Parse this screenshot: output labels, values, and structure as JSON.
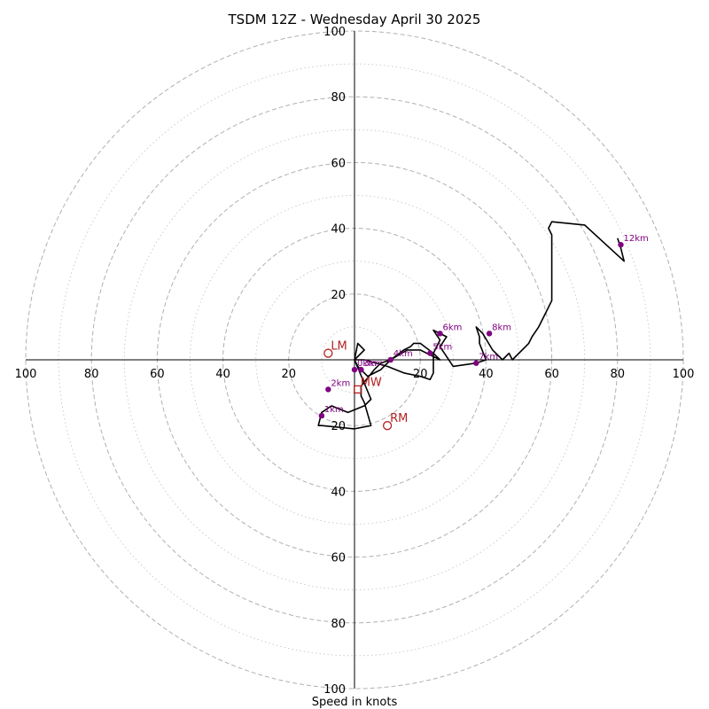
{
  "chart_data": {
    "type": "hodograph",
    "title": "TSDM 12Z - Wednesday April 30 2025",
    "xlabel": "Speed in knots",
    "ylabel": "",
    "xlim": [
      -100,
      100
    ],
    "ylim": [
      -100,
      100
    ],
    "x_ticks": [
      {
        "value": -100,
        "label": "100"
      },
      {
        "value": -80,
        "label": "80"
      },
      {
        "value": -60,
        "label": "60"
      },
      {
        "value": -40,
        "label": "40"
      },
      {
        "value": -20,
        "label": "20"
      },
      {
        "value": 20,
        "label": "20"
      },
      {
        "value": 40,
        "label": "40"
      },
      {
        "value": 60,
        "label": "60"
      },
      {
        "value": 80,
        "label": "80"
      },
      {
        "value": 100,
        "label": "100"
      }
    ],
    "y_ticks": [
      {
        "value": 100,
        "label": "100"
      },
      {
        "value": 80,
        "label": "80"
      },
      {
        "value": 60,
        "label": "60"
      },
      {
        "value": 40,
        "label": "40"
      },
      {
        "value": 20,
        "label": "20"
      },
      {
        "value": -20,
        "label": "20"
      },
      {
        "value": -40,
        "label": "40"
      },
      {
        "value": -60,
        "label": "60"
      },
      {
        "value": -80,
        "label": "80"
      },
      {
        "value": -100,
        "label": "100"
      }
    ],
    "rings_major": [
      20,
      40,
      60,
      80,
      100
    ],
    "rings_minor": [
      10,
      30,
      50,
      70,
      90
    ],
    "grid": true,
    "hodograph_trace": [
      [
        0,
        0
      ],
      [
        1,
        5
      ],
      [
        3,
        3
      ],
      [
        0,
        0
      ],
      [
        5,
        -12
      ],
      [
        3,
        -14
      ],
      [
        -2,
        -16
      ],
      [
        -7,
        -14
      ],
      [
        -10,
        -16
      ],
      [
        -11,
        -20
      ],
      [
        -10,
        -20
      ],
      [
        0,
        -21
      ],
      [
        5,
        -20
      ],
      [
        3,
        -13
      ],
      [
        2,
        -11
      ],
      [
        2,
        -8
      ],
      [
        6,
        -3
      ],
      [
        8,
        -1
      ],
      [
        11,
        0
      ],
      [
        15,
        3
      ],
      [
        17,
        4
      ],
      [
        18,
        5
      ],
      [
        19,
        5
      ],
      [
        20,
        5
      ],
      [
        24,
        2
      ],
      [
        26,
        0
      ],
      [
        24,
        1
      ],
      [
        20,
        3
      ],
      [
        16,
        3
      ],
      [
        11,
        0
      ],
      [
        8,
        -3
      ],
      [
        4,
        -5
      ],
      [
        1,
        -2
      ],
      [
        0,
        0
      ],
      [
        3,
        0
      ],
      [
        10,
        -2
      ],
      [
        15,
        -4
      ],
      [
        20,
        -5
      ],
      [
        23,
        -6
      ],
      [
        24,
        -4
      ],
      [
        24,
        2
      ],
      [
        26,
        6
      ],
      [
        24,
        9
      ],
      [
        28,
        7
      ],
      [
        26,
        4
      ],
      [
        30,
        -2
      ],
      [
        37,
        -1
      ],
      [
        40,
        0
      ],
      [
        38,
        5
      ],
      [
        38,
        7
      ],
      [
        37,
        10
      ],
      [
        39,
        8
      ],
      [
        42,
        3
      ],
      [
        45,
        0
      ],
      [
        47,
        2
      ],
      [
        48,
        0
      ],
      [
        52,
        4
      ],
      [
        53,
        5
      ],
      [
        54,
        7
      ],
      [
        56,
        10
      ],
      [
        58,
        14
      ],
      [
        60,
        18
      ],
      [
        60,
        22
      ],
      [
        60,
        38
      ],
      [
        59,
        40
      ],
      [
        60,
        42
      ],
      [
        70,
        41
      ],
      [
        82,
        30
      ],
      [
        81,
        34
      ],
      [
        80,
        37
      ]
    ],
    "height_markers": [
      {
        "label": "0km",
        "x": 0,
        "y": -3
      },
      {
        "label": "1km",
        "x": -10,
        "y": -17
      },
      {
        "label": "2km",
        "x": -8,
        "y": -9
      },
      {
        "label": "3km",
        "x": 2,
        "y": -3
      },
      {
        "label": "4km",
        "x": 11,
        "y": 0
      },
      {
        "label": "5km",
        "x": 23,
        "y": 2
      },
      {
        "label": "6km",
        "x": 26,
        "y": 8
      },
      {
        "label": "7km",
        "x": 37,
        "y": -1
      },
      {
        "label": "8km",
        "x": 41,
        "y": 8
      },
      {
        "label": "12km",
        "x": 81,
        "y": 35
      }
    ],
    "motion_markers": [
      {
        "label": "LM",
        "x": -8,
        "y": 2
      },
      {
        "label": "RM",
        "x": 10,
        "y": -20
      },
      {
        "label": "MW",
        "x": 1,
        "y": -9
      }
    ],
    "colors": {
      "trace": "#000000",
      "height_marker": "#800080",
      "motion_marker": "#b22222",
      "ring": "#b0b0b0",
      "axis": "#000000"
    }
  }
}
